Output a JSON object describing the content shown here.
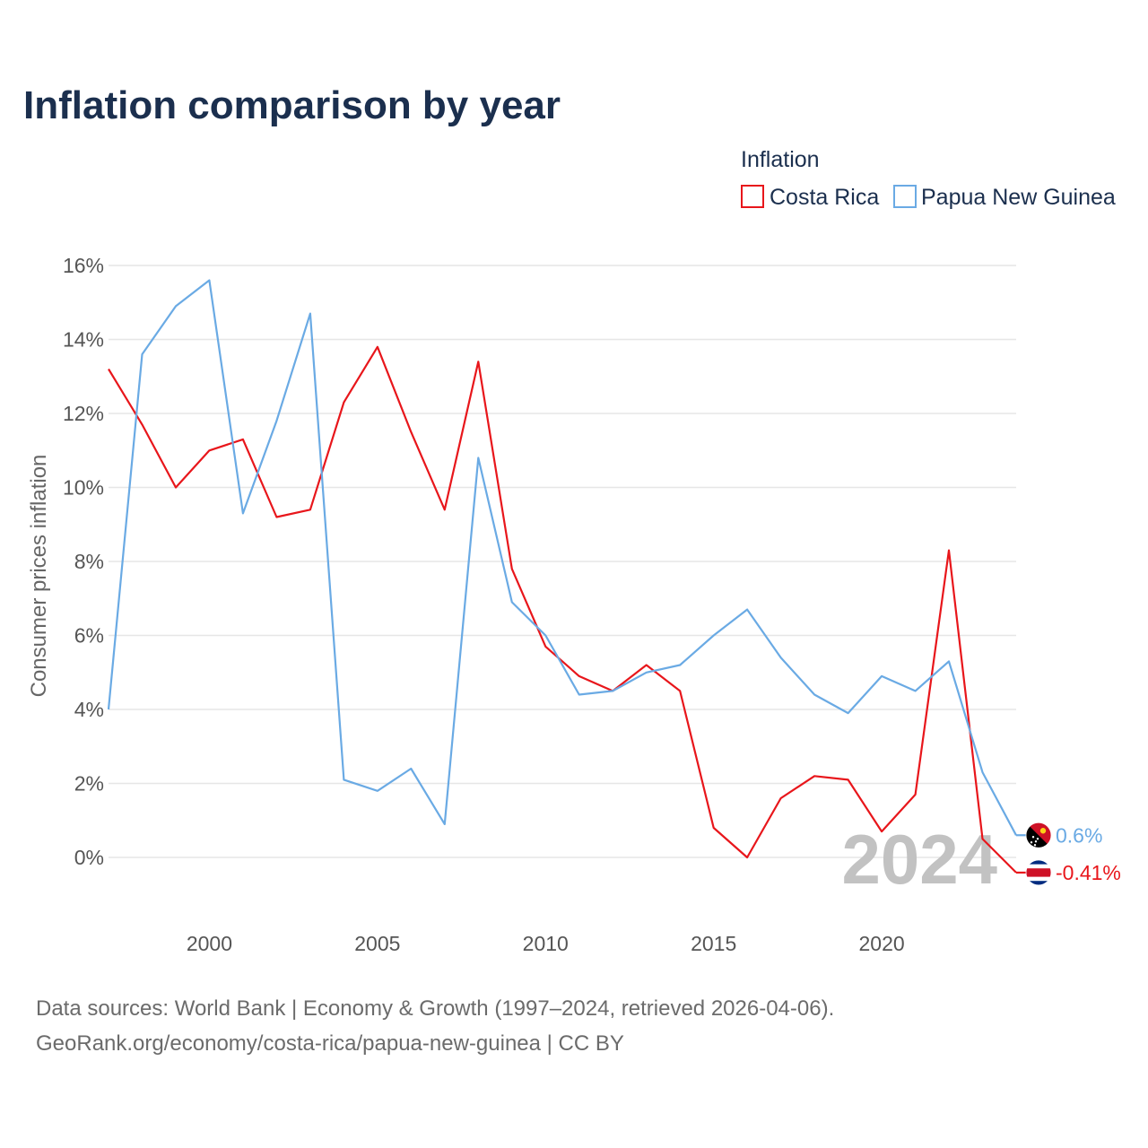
{
  "title": "Inflation comparison by year",
  "legend": {
    "title": "Inflation",
    "items": [
      {
        "name": "Costa Rica",
        "color": "#e8161b"
      },
      {
        "name": "Papua New Guinea",
        "color": "#6aaae4"
      }
    ]
  },
  "year_label": "2024",
  "source_lines": [
    "Data sources: World Bank | Economy & Growth (1997–2024, retrieved 2026-04-06).",
    "GeoRank.org/economy/costa-rica/papua-new-guinea | CC BY"
  ],
  "chart_data": {
    "type": "line",
    "title": "Inflation comparison by year",
    "xlabel": "",
    "ylabel": "Consumer prices inflation",
    "x": [
      1997,
      1998,
      1999,
      2000,
      2001,
      2002,
      2003,
      2004,
      2005,
      2006,
      2007,
      2008,
      2009,
      2010,
      2011,
      2012,
      2013,
      2014,
      2015,
      2016,
      2017,
      2018,
      2019,
      2020,
      2021,
      2022,
      2023,
      2024
    ],
    "xlim": [
      1997,
      2024
    ],
    "ylim": [
      -1.4,
      16
    ],
    "x_ticks": [
      2000,
      2005,
      2010,
      2015,
      2020
    ],
    "x_tick_labels": [
      "2000",
      "2005",
      "2010",
      "2015",
      "2020"
    ],
    "y_ticks": [
      0,
      2,
      4,
      6,
      8,
      10,
      12,
      14,
      16
    ],
    "y_tick_labels": [
      "0%",
      "2%",
      "4%",
      "6%",
      "8%",
      "10%",
      "12%",
      "14%",
      "16%"
    ],
    "grid": true,
    "legend_position": "top-right",
    "series": [
      {
        "name": "Costa Rica",
        "color": "#e8161b",
        "end_label": "-0.41%",
        "flag_icon": "costa-rica-flag-icon",
        "values": [
          13.2,
          11.7,
          10.0,
          11.0,
          11.3,
          9.2,
          9.4,
          12.3,
          13.8,
          11.5,
          9.4,
          13.4,
          7.8,
          5.7,
          4.9,
          4.5,
          5.2,
          4.5,
          0.8,
          0.0,
          1.6,
          2.2,
          2.1,
          0.7,
          1.7,
          8.3,
          0.5,
          -0.41
        ]
      },
      {
        "name": "Papua New Guinea",
        "color": "#6aaae4",
        "end_label": "0.6%",
        "flag_icon": "papua-new-guinea-flag-icon",
        "values": [
          4.0,
          13.6,
          14.9,
          15.6,
          9.3,
          11.8,
          14.7,
          2.1,
          1.8,
          2.4,
          0.9,
          10.8,
          6.9,
          6.0,
          4.4,
          4.5,
          5.0,
          5.2,
          6.0,
          6.7,
          5.4,
          4.4,
          3.9,
          4.9,
          4.5,
          5.3,
          2.3,
          0.6
        ]
      }
    ]
  }
}
